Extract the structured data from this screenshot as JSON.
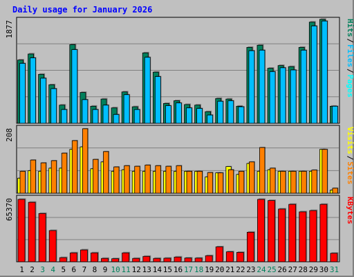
{
  "title": "Daily usage for January 2026",
  "chart_data": [
    {
      "type": "bar",
      "panel": "pages-files-hits",
      "axis_max_label": "1877",
      "ylim": [
        0,
        1877
      ],
      "grid": true,
      "legend": "right, vertical",
      "series": [
        {
          "name": "Hits",
          "color": "#00805c",
          "values": [
            1150,
            1260,
            890,
            700,
            330,
            1430,
            560,
            310,
            440,
            280,
            570,
            300,
            1280,
            930,
            360,
            410,
            340,
            330,
            210,
            450,
            440,
            310,
            1380,
            1420,
            1000,
            1050,
            1030,
            1380,
            1840,
            1890,
            310
          ]
        },
        {
          "name": "Files",
          "color": "#00bfff",
          "values": [
            1090,
            1190,
            820,
            630,
            250,
            1340,
            430,
            250,
            330,
            160,
            520,
            250,
            1200,
            850,
            320,
            370,
            280,
            270,
            150,
            400,
            410,
            300,
            1320,
            1330,
            940,
            1010,
            970,
            1330,
            1770,
            1860,
            310
          ]
        },
        {
          "name": "Pages",
          "color": "#00ffff",
          "values": [
            0,
            0,
            0,
            0,
            0,
            0,
            0,
            0,
            0,
            0,
            0,
            0,
            0,
            0,
            0,
            0,
            0,
            0,
            0,
            0,
            0,
            0,
            0,
            0,
            0,
            0,
            0,
            0,
            0,
            0,
            0
          ]
        }
      ]
    },
    {
      "type": "bar",
      "panel": "visits-sites",
      "axis_max_label": "208",
      "ylim": [
        0,
        208
      ],
      "grid": true,
      "legend": "right, vertical",
      "series": [
        {
          "name": "Visits",
          "color": "#ffff00",
          "values": [
            48,
            72,
            70,
            80,
            80,
            140,
            148,
            78,
            100,
            70,
            75,
            70,
            70,
            70,
            70,
            70,
            70,
            70,
            52,
            65,
            85,
            60,
            95,
            70,
            75,
            70,
            70,
            70,
            70,
            140,
            10
          ]
        },
        {
          "name": "Sites",
          "color": "#ff8000",
          "values": [
            70,
            106,
            97,
            104,
            128,
            168,
            206,
            108,
            133,
            84,
            88,
            86,
            90,
            88,
            86,
            88,
            70,
            70,
            66,
            65,
            75,
            70,
            100,
            146,
            80,
            70,
            70,
            70,
            74,
            140,
            16
          ]
        }
      ]
    },
    {
      "type": "bar",
      "panel": "kbytes",
      "axis_max_label": "65370",
      "ylim": [
        0,
        65370
      ],
      "grid": true,
      "legend": "right, vertical",
      "series": [
        {
          "name": "KBytes",
          "color": "#ff0000",
          "values": [
            64000,
            61000,
            49500,
            32000,
            4200,
            9100,
            12100,
            9100,
            3400,
            3100,
            9100,
            3400,
            5500,
            3400,
            3600,
            4800,
            3800,
            3700,
            6200,
            15300,
            10200,
            9600,
            30300,
            64000,
            62800,
            54100,
            58900,
            51200,
            52500,
            58900,
            8700
          ]
        }
      ]
    }
  ],
  "x_labels": [
    "1",
    "2",
    "3",
    "4",
    "5",
    "6",
    "7",
    "8",
    "9",
    "10",
    "11",
    "12",
    "13",
    "14",
    "15",
    "16",
    "17",
    "18",
    "19",
    "20",
    "21",
    "22",
    "23",
    "24",
    "25",
    "26",
    "27",
    "28",
    "29",
    "30",
    "31"
  ],
  "weekend_days": [
    3,
    4,
    10,
    11,
    17,
    18,
    24,
    25,
    31
  ],
  "colors": {
    "background": "#c0c0c0",
    "plot": "#c0c0c0",
    "axis_label": "#000000",
    "title": "#0000ff",
    "weekend_label": "#00805c",
    "separator": "#000000"
  }
}
